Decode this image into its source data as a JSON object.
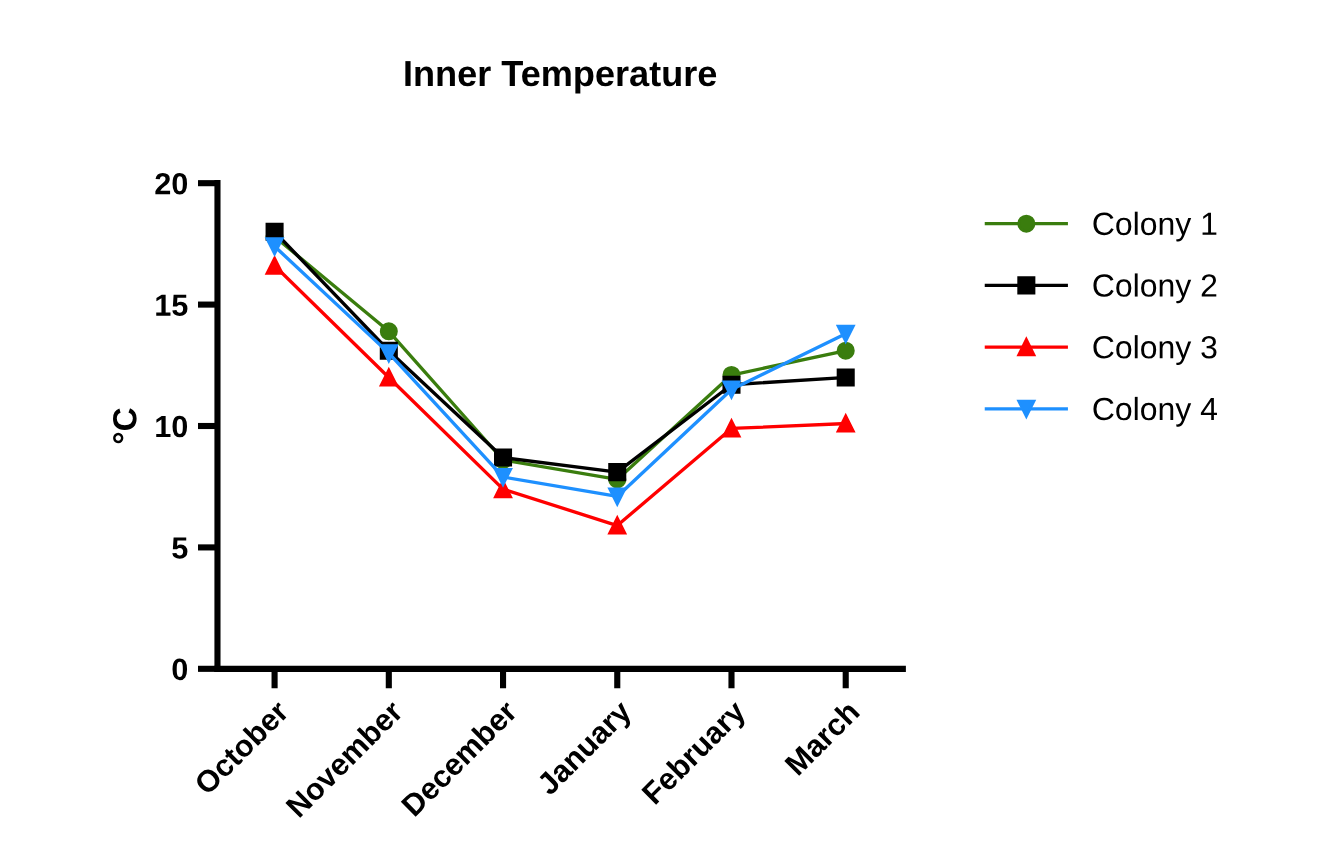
{
  "chart_data": {
    "type": "line",
    "title": "Inner Temperature",
    "ylabel": "°C",
    "categories": [
      "October",
      "November",
      "December",
      "January",
      "February",
      "March"
    ],
    "series": [
      {
        "name": "Colony 1",
        "color": "#3a7d0e",
        "marker": "circle",
        "values": [
          17.8,
          13.9,
          8.6,
          7.8,
          12.1,
          13.1
        ]
      },
      {
        "name": "Colony 2",
        "color": "#000000",
        "marker": "square",
        "values": [
          18.0,
          13.1,
          8.7,
          8.1,
          11.7,
          12.0
        ]
      },
      {
        "name": "Colony 3",
        "color": "#ff0000",
        "marker": "triangle",
        "values": [
          16.6,
          12.0,
          7.4,
          5.9,
          9.9,
          10.1
        ]
      },
      {
        "name": "Colony 4",
        "color": "#1e90ff",
        "marker": "triangle-down",
        "values": [
          17.4,
          13.0,
          7.9,
          7.1,
          11.5,
          13.8
        ]
      }
    ],
    "ylim": [
      0,
      20
    ],
    "yticks": [
      0,
      5,
      10,
      15,
      20
    ],
    "grid": false,
    "legend": "right",
    "line_style": "solid"
  }
}
